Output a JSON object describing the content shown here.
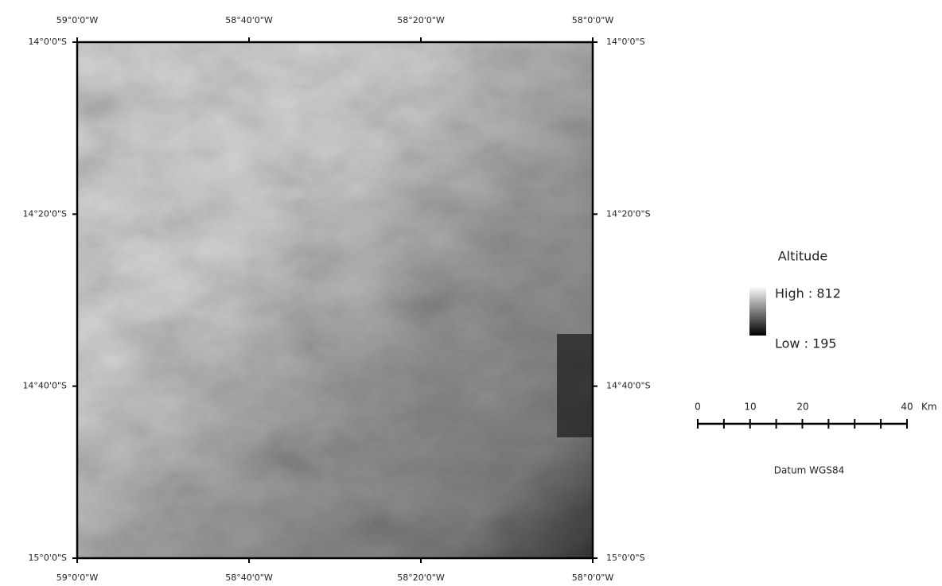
{
  "map": {
    "lon_labels": [
      "59°0'0\"W",
      "58°40'0\"W",
      "58°20'0\"W",
      "58°0'0\"W"
    ],
    "lat_labels": [
      "14°0'0\"S",
      "14°20'0\"S",
      "14°40'0\"S",
      "15°0'0\"S"
    ]
  },
  "legend": {
    "title": "Altitude",
    "high": "High : 812",
    "low": "Low : 195"
  },
  "scale_bar": {
    "labels": [
      "0",
      "10",
      "20",
      "40"
    ],
    "unit": "Km"
  },
  "datum": "Datum WGS84"
}
